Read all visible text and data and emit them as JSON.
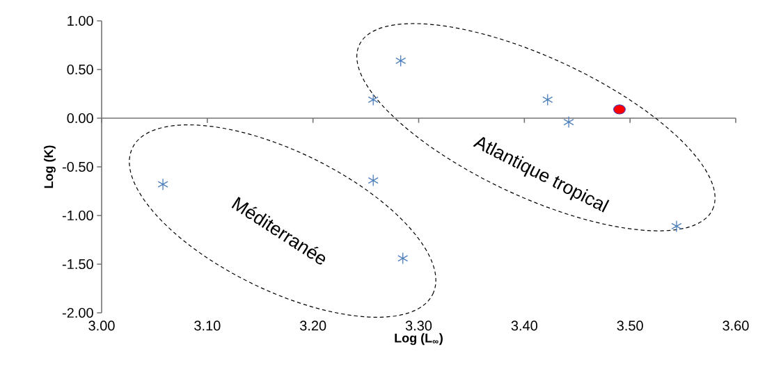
{
  "chart_data": {
    "type": "scatter",
    "xlabel": "Log (L$_{∞}$)",
    "ylabel": "Log (K)",
    "xlim": [
      3.0,
      3.6
    ],
    "ylim": [
      -2.0,
      1.0
    ],
    "xticks": [
      {
        "value": 3.0,
        "label": "3.00"
      },
      {
        "value": 3.1,
        "label": "3.10"
      },
      {
        "value": 3.2,
        "label": "3.20"
      },
      {
        "value": 3.3,
        "label": "3.30"
      },
      {
        "value": 3.4,
        "label": "3.40"
      },
      {
        "value": 3.5,
        "label": "3.50"
      },
      {
        "value": 3.6,
        "label": "3.60"
      }
    ],
    "yticks": [
      {
        "value": -2.0,
        "label": "-2.00"
      },
      {
        "value": -1.5,
        "label": "-1.50"
      },
      {
        "value": -1.0,
        "label": "-1.00"
      },
      {
        "value": -0.5,
        "label": "-0.50"
      },
      {
        "value": 0.0,
        "label": "0.00"
      },
      {
        "value": 0.5,
        "label": "0.50"
      },
      {
        "value": 1.0,
        "label": "1.00"
      }
    ],
    "series": [
      {
        "color": "#4f81bd",
        "marker": "cross",
        "x": [
          3.058,
          3.257,
          3.257,
          3.283,
          3.285,
          3.422,
          3.442,
          3.544
        ],
        "values": [
          -0.68,
          0.19,
          -0.64,
          0.59,
          -1.44,
          0.19,
          -0.04,
          -1.11
        ]
      },
      {
        "color": "#ff0000",
        "marker": "circle",
        "x": [
          3.49
        ],
        "values": [
          0.09
        ]
      }
    ],
    "annotations": [
      "Méditerranée",
      "Atlantique tropical"
    ]
  }
}
